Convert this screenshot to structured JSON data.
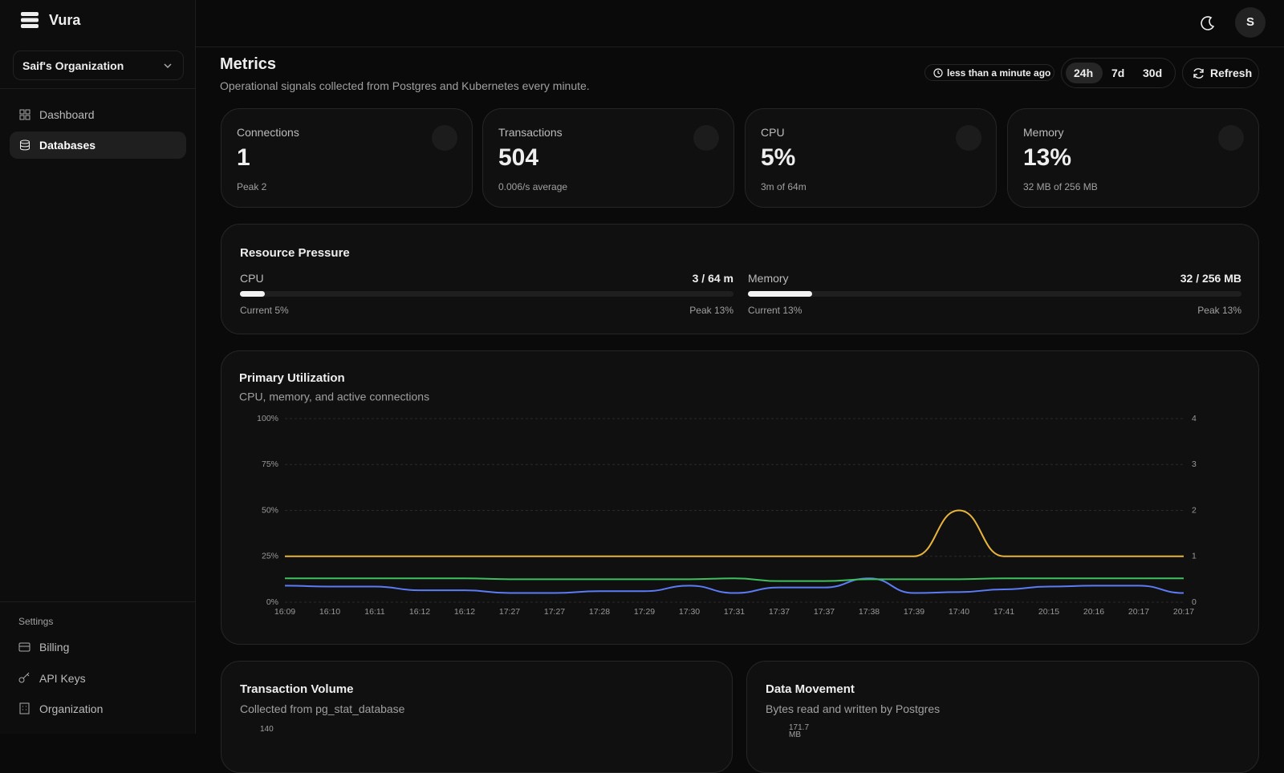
{
  "sidebar": {
    "brand": "Vura",
    "organization": "Saif's Organization",
    "nav": [
      "Dashboard",
      "Databases"
    ],
    "settings_title": "Settings",
    "settings": [
      "Billing",
      "API Keys",
      "Organization"
    ]
  },
  "header": {
    "avatar": "S"
  },
  "page": {
    "title": "Metrics",
    "subtitle": "Operational signals collected from Postgres and Kubernetes every minute.",
    "updated": "less than a minute ago",
    "ranges": [
      "24h",
      "7d",
      "30d"
    ],
    "refresh": "Refresh"
  },
  "cards": [
    {
      "label": "Connections",
      "value": "1",
      "note": "Peak 2"
    },
    {
      "label": "Transactions",
      "value": "504",
      "note": "0.006/s average"
    },
    {
      "label": "CPU",
      "value": "5%",
      "note": "3m of 64m"
    },
    {
      "label": "Memory",
      "value": "13%",
      "note": "32 MB of 256 MB"
    }
  ],
  "resource_pressure": {
    "title": "Resource Pressure",
    "bars": [
      {
        "label": "CPU",
        "usage": "3 / 64 m",
        "current": "Current 5%",
        "peak": "Peak 13%",
        "percent": 5
      },
      {
        "label": "Memory",
        "usage": "32 / 256 MB",
        "current": "Current 13%",
        "peak": "Peak 13%",
        "percent": 13
      }
    ]
  },
  "chart_data": {
    "type": "line",
    "title": "Primary Utilization",
    "subtitle": "CPU, memory, and active connections",
    "categories": [
      "16:09",
      "16:10",
      "16:11",
      "16:12",
      "16:12",
      "17:27",
      "17:27",
      "17:28",
      "17:29",
      "17:30",
      "17:31",
      "17:37",
      "17:37",
      "17:38",
      "17:39",
      "17:40",
      "17:41",
      "20:15",
      "20:16",
      "20:17",
      "20:17"
    ],
    "ylim": [
      0,
      100
    ],
    "yticks": [
      {
        "value": 0,
        "label": "0%"
      },
      {
        "value": 25,
        "label": "25%"
      },
      {
        "value": 50,
        "label": "50%"
      },
      {
        "value": 75,
        "label": "75%"
      },
      {
        "value": 100,
        "label": "100%"
      }
    ],
    "y2lim": [
      0,
      4
    ],
    "y2ticks": [
      0,
      1,
      2,
      3,
      4
    ],
    "grid": true,
    "series": [
      {
        "color": "#5b7cf5",
        "values": [
          9,
          8.5,
          8.5,
          6.5,
          6.5,
          5,
          5,
          6,
          6,
          9,
          5,
          8,
          8,
          13,
          5,
          5.5,
          7,
          8.5,
          9,
          9,
          5
        ]
      },
      {
        "color": "#3fbf5f",
        "values": [
          13,
          13,
          13,
          13,
          13,
          12.5,
          12.5,
          12.5,
          12.5,
          12.5,
          13,
          11.5,
          11.5,
          12.5,
          12.5,
          12.5,
          13,
          13,
          13,
          13,
          13
        ]
      },
      {
        "color": "#e8b53c",
        "axis": "y2",
        "values": [
          1,
          1,
          1,
          1,
          1,
          1,
          1,
          1,
          1,
          1,
          1,
          1,
          1,
          1,
          1,
          2,
          1,
          1,
          1,
          1,
          1
        ]
      }
    ]
  },
  "bottom_cards": [
    {
      "title": "Transaction Volume",
      "subtitle": "Collected from pg_stat_database",
      "top_tick": "140"
    },
    {
      "title": "Data Movement",
      "subtitle": "Bytes read and written by Postgres",
      "top_tick": "171.7 MB"
    }
  ]
}
